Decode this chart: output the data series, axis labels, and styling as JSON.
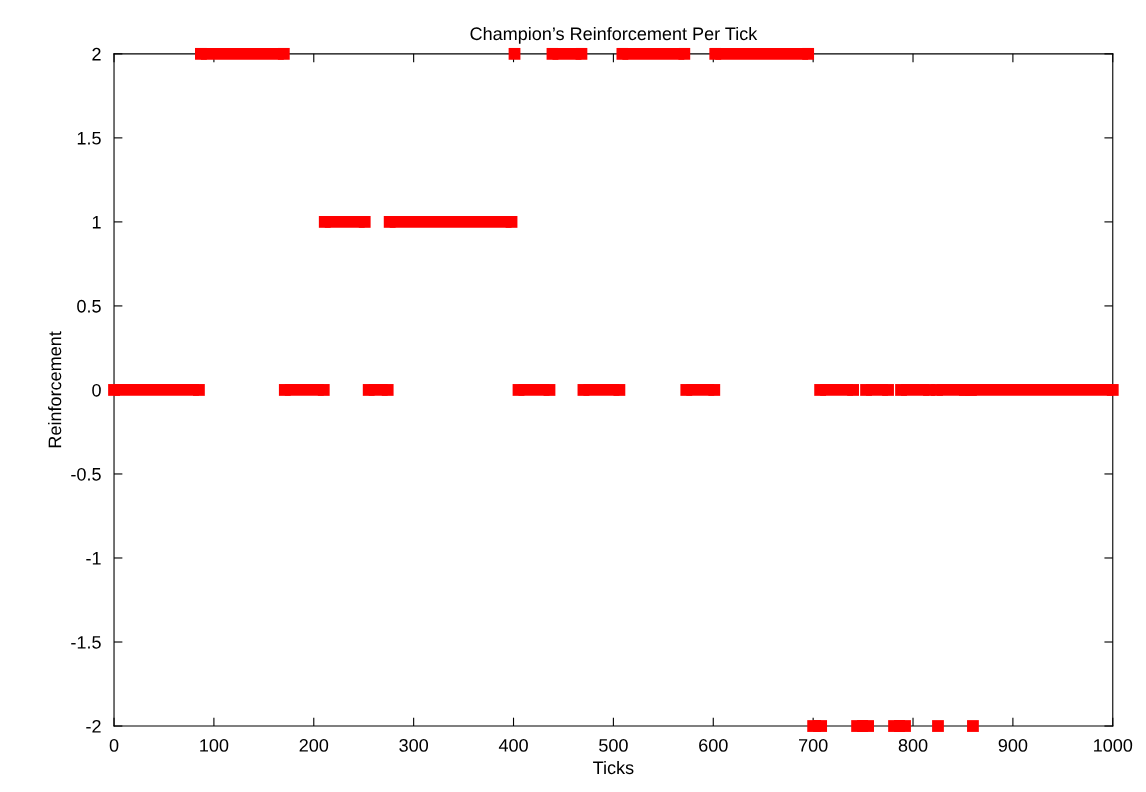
{
  "chart_data": {
    "type": "line",
    "title": "Champion’s Reinforcement Per Tick",
    "xlabel": "Ticks",
    "ylabel": "Reinforcement",
    "xlim": [
      0,
      1000
    ],
    "xticks": [
      0,
      100,
      200,
      300,
      400,
      500,
      600,
      700,
      800,
      900,
      1000
    ],
    "ylim": [
      -2,
      2
    ],
    "yticks": [
      -2,
      -1.5,
      -1,
      -0.5,
      0,
      0.5,
      1,
      1.5,
      2
    ],
    "marker": "square",
    "line_style": "solid",
    "grid": false,
    "legend": false,
    "series": [
      {
        "color": "#ff0000",
        "x": [
          0,
          85,
          86,
          171,
          210,
          211,
          255,
          274,
          275,
          405,
          436,
          437,
          470,
          506,
          507,
          573,
          601,
          602,
          707,
          740,
          741,
          753,
          775,
          776,
          788,
          816,
          817,
          824,
          852,
          853,
          858,
          1000
        ],
        "values": [
          0,
          0,
          null,
          0,
          0,
          null,
          0,
          0,
          null,
          0,
          0,
          null,
          0,
          0,
          null,
          0,
          0,
          null,
          0,
          0,
          null,
          0,
          0,
          null,
          0,
          0,
          null,
          0,
          0,
          null,
          0,
          0
        ]
      },
      {
        "color": "#ff0000",
        "x": [
          87,
          170,
          171,
          401,
          402,
          439,
          468,
          469,
          509,
          571,
          572,
          602,
          695
        ],
        "values": [
          2,
          2,
          null,
          2,
          null,
          2,
          2,
          null,
          2,
          2,
          null,
          2,
          2
        ]
      },
      {
        "color": "#ff0000",
        "x": [
          211,
          251,
          252,
          276,
          398
        ],
        "values": [
          1,
          1,
          null,
          1,
          1
        ]
      },
      {
        "color": "#ff0000",
        "x": [
          700,
          708,
          709,
          744,
          755,
          756,
          781,
          792,
          793,
          825,
          826,
          860
        ],
        "values": [
          -2,
          -2,
          null,
          -2,
          -2,
          null,
          -2,
          -2,
          null,
          -2,
          null,
          -2
        ]
      }
    ]
  }
}
